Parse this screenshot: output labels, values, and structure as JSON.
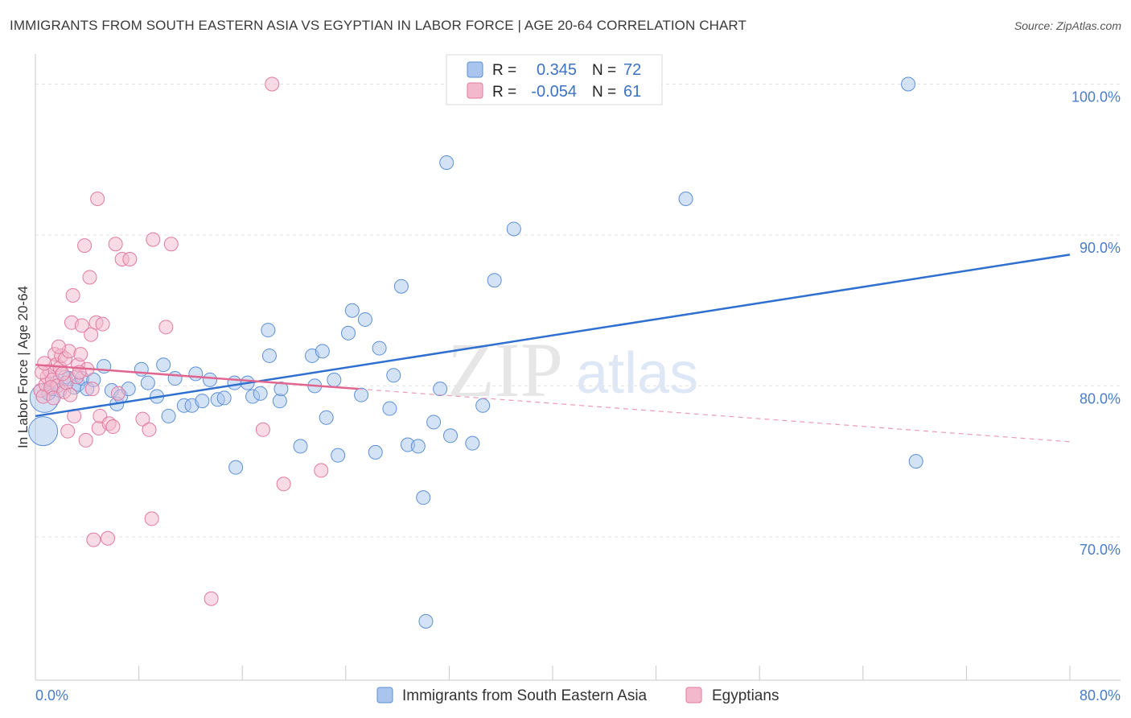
{
  "header": {
    "title": "IMMIGRANTS FROM SOUTH EASTERN ASIA VS EGYPTIAN IN LABOR FORCE | AGE 20-64 CORRELATION CHART",
    "source": "Source: ZipAtlas.com"
  },
  "watermark": {
    "zip": "ZIP",
    "atlas": "atlas"
  },
  "colors": {
    "blue": "#5b8fd6",
    "blue_fill": "#a9c5ee",
    "pink": "#e07aa0",
    "pink_fill": "#f4b8cc",
    "axis_text": "#4a7cc9"
  },
  "chart_data": {
    "type": "scatter",
    "title": "IMMIGRANTS FROM SOUTH EASTERN ASIA VS EGYPTIAN IN LABOR FORCE | AGE 20-64 CORRELATION CHART",
    "xlabel": "",
    "ylabel": "In Labor Force | Age 20-64",
    "xlim": [
      0,
      80
    ],
    "ylim": [
      60.5,
      102
    ],
    "x_tick_labels": [
      "0.0%",
      "80.0%"
    ],
    "y_ticks": [
      70,
      80,
      90,
      100
    ],
    "y_tick_labels": [
      "70.0%",
      "80.0%",
      "90.0%",
      "100.0%"
    ],
    "grid": true,
    "legend_position": "top-center",
    "legend": [
      {
        "name": "Immigrants from South Eastern Asia",
        "r_label": "R =",
        "r_value": "0.345",
        "n_label": "N =",
        "n_value": "72"
      },
      {
        "name": "Egyptians",
        "r_label": "R =",
        "r_value": "-0.054",
        "n_label": "N =",
        "n_value": "61"
      }
    ],
    "series": [
      {
        "name": "Immigrants from South Eastern Asia",
        "color": "#5b8fd6",
        "trend": {
          "x": [
            0,
            80
          ],
          "y": [
            78.0,
            88.7
          ],
          "dashed_extension": false
        },
        "points": [
          {
            "x": 0.6,
            "y": 77.0,
            "big": true
          },
          {
            "x": 0.7,
            "y": 79.2,
            "big": true
          },
          {
            "x": 1.0,
            "y": 79.5
          },
          {
            "x": 1.3,
            "y": 79.8
          },
          {
            "x": 1.6,
            "y": 80.2
          },
          {
            "x": 1.9,
            "y": 79.7
          },
          {
            "x": 2.3,
            "y": 80.6
          },
          {
            "x": 2.6,
            "y": 80.5
          },
          {
            "x": 3.0,
            "y": 79.9
          },
          {
            "x": 3.3,
            "y": 80.1
          },
          {
            "x": 3.6,
            "y": 80.5
          },
          {
            "x": 4.0,
            "y": 79.8
          },
          {
            "x": 4.5,
            "y": 80.4
          },
          {
            "x": 5.3,
            "y": 81.3
          },
          {
            "x": 5.9,
            "y": 79.7
          },
          {
            "x": 6.3,
            "y": 78.8
          },
          {
            "x": 6.6,
            "y": 79.3
          },
          {
            "x": 7.2,
            "y": 79.8
          },
          {
            "x": 8.2,
            "y": 81.1
          },
          {
            "x": 8.7,
            "y": 80.2
          },
          {
            "x": 9.4,
            "y": 79.3
          },
          {
            "x": 9.9,
            "y": 81.4
          },
          {
            "x": 10.3,
            "y": 78.0
          },
          {
            "x": 10.8,
            "y": 80.5
          },
          {
            "x": 11.5,
            "y": 78.7
          },
          {
            "x": 12.1,
            "y": 78.7
          },
          {
            "x": 12.4,
            "y": 80.8
          },
          {
            "x": 12.9,
            "y": 79.0
          },
          {
            "x": 13.5,
            "y": 80.4
          },
          {
            "x": 14.1,
            "y": 79.1
          },
          {
            "x": 14.6,
            "y": 79.2
          },
          {
            "x": 15.4,
            "y": 80.2
          },
          {
            "x": 15.5,
            "y": 74.6
          },
          {
            "x": 16.4,
            "y": 80.2
          },
          {
            "x": 16.8,
            "y": 79.3
          },
          {
            "x": 17.4,
            "y": 79.5
          },
          {
            "x": 18.1,
            "y": 82.0
          },
          {
            "x": 18.0,
            "y": 83.7
          },
          {
            "x": 18.9,
            "y": 79.0
          },
          {
            "x": 19.0,
            "y": 79.8
          },
          {
            "x": 20.5,
            "y": 76.0
          },
          {
            "x": 21.6,
            "y": 80.0
          },
          {
            "x": 21.4,
            "y": 82.0
          },
          {
            "x": 22.2,
            "y": 82.3
          },
          {
            "x": 22.5,
            "y": 77.9
          },
          {
            "x": 23.1,
            "y": 80.4
          },
          {
            "x": 23.4,
            "y": 75.4
          },
          {
            "x": 24.2,
            "y": 83.5
          },
          {
            "x": 24.5,
            "y": 85.0
          },
          {
            "x": 25.2,
            "y": 79.4
          },
          {
            "x": 25.5,
            "y": 84.4
          },
          {
            "x": 26.3,
            "y": 75.6
          },
          {
            "x": 26.6,
            "y": 82.5
          },
          {
            "x": 27.4,
            "y": 78.5
          },
          {
            "x": 27.7,
            "y": 80.7
          },
          {
            "x": 28.3,
            "y": 86.6
          },
          {
            "x": 28.8,
            "y": 76.1
          },
          {
            "x": 29.6,
            "y": 76.0
          },
          {
            "x": 30.0,
            "y": 72.6
          },
          {
            "x": 30.2,
            "y": 64.4
          },
          {
            "x": 30.8,
            "y": 77.6
          },
          {
            "x": 31.3,
            "y": 79.8
          },
          {
            "x": 31.8,
            "y": 94.8
          },
          {
            "x": 32.1,
            "y": 76.7
          },
          {
            "x": 33.8,
            "y": 76.2
          },
          {
            "x": 34.6,
            "y": 78.7
          },
          {
            "x": 35.5,
            "y": 87.0
          },
          {
            "x": 37.0,
            "y": 90.4
          },
          {
            "x": 43.4,
            "y": 100.0
          },
          {
            "x": 50.3,
            "y": 92.4
          },
          {
            "x": 67.5,
            "y": 100.0
          },
          {
            "x": 68.1,
            "y": 75.0
          }
        ]
      },
      {
        "name": "Egyptians",
        "color": "#e07aa0",
        "trend": {
          "x": [
            0,
            25
          ],
          "y": [
            81.4,
            79.8
          ],
          "extension_x": [
            25,
            80
          ],
          "extension_y": [
            79.8,
            76.3
          ]
        },
        "points": [
          {
            "x": 0.4,
            "y": 79.7
          },
          {
            "x": 0.6,
            "y": 79.3
          },
          {
            "x": 0.8,
            "y": 80.1
          },
          {
            "x": 0.9,
            "y": 80.6
          },
          {
            "x": 1.1,
            "y": 81.0
          },
          {
            "x": 1.3,
            "y": 80.4
          },
          {
            "x": 1.5,
            "y": 82.1
          },
          {
            "x": 1.6,
            "y": 81.4
          },
          {
            "x": 1.7,
            "y": 80.0
          },
          {
            "x": 1.9,
            "y": 81.2
          },
          {
            "x": 2.0,
            "y": 82.0
          },
          {
            "x": 2.2,
            "y": 79.6
          },
          {
            "x": 2.3,
            "y": 81.8
          },
          {
            "x": 2.4,
            "y": 80.2
          },
          {
            "x": 2.5,
            "y": 77.0
          },
          {
            "x": 2.6,
            "y": 82.3
          },
          {
            "x": 2.8,
            "y": 84.2
          },
          {
            "x": 2.9,
            "y": 86.0
          },
          {
            "x": 3.0,
            "y": 78.0
          },
          {
            "x": 3.2,
            "y": 80.6
          },
          {
            "x": 3.3,
            "y": 81.4
          },
          {
            "x": 3.5,
            "y": 82.1
          },
          {
            "x": 3.6,
            "y": 84.0
          },
          {
            "x": 3.8,
            "y": 89.3
          },
          {
            "x": 3.9,
            "y": 76.4
          },
          {
            "x": 4.0,
            "y": 81.1
          },
          {
            "x": 4.2,
            "y": 87.2
          },
          {
            "x": 4.3,
            "y": 83.4
          },
          {
            "x": 4.4,
            "y": 79.8
          },
          {
            "x": 4.5,
            "y": 69.8
          },
          {
            "x": 4.7,
            "y": 84.2
          },
          {
            "x": 4.8,
            "y": 92.4
          },
          {
            "x": 4.9,
            "y": 77.2
          },
          {
            "x": 5.0,
            "y": 78.0
          },
          {
            "x": 5.2,
            "y": 84.1
          },
          {
            "x": 5.6,
            "y": 69.9
          },
          {
            "x": 5.7,
            "y": 77.5
          },
          {
            "x": 6.0,
            "y": 77.3
          },
          {
            "x": 6.2,
            "y": 89.4
          },
          {
            "x": 6.4,
            "y": 79.5
          },
          {
            "x": 6.7,
            "y": 88.4
          },
          {
            "x": 7.3,
            "y": 88.4
          },
          {
            "x": 8.3,
            "y": 77.8
          },
          {
            "x": 8.8,
            "y": 77.1
          },
          {
            "x": 9.0,
            "y": 71.2
          },
          {
            "x": 9.1,
            "y": 89.7
          },
          {
            "x": 10.1,
            "y": 83.9
          },
          {
            "x": 10.5,
            "y": 89.4
          },
          {
            "x": 13.6,
            "y": 65.9
          },
          {
            "x": 17.6,
            "y": 77.1
          },
          {
            "x": 18.3,
            "y": 100.0
          },
          {
            "x": 19.2,
            "y": 73.5
          },
          {
            "x": 22.1,
            "y": 74.4
          },
          {
            "x": 0.5,
            "y": 80.9
          },
          {
            "x": 1.2,
            "y": 79.9
          },
          {
            "x": 1.8,
            "y": 82.6
          },
          {
            "x": 2.1,
            "y": 80.8
          },
          {
            "x": 2.7,
            "y": 79.4
          },
          {
            "x": 3.4,
            "y": 80.9
          },
          {
            "x": 0.7,
            "y": 81.5
          },
          {
            "x": 1.4,
            "y": 79.2
          }
        ]
      }
    ]
  }
}
